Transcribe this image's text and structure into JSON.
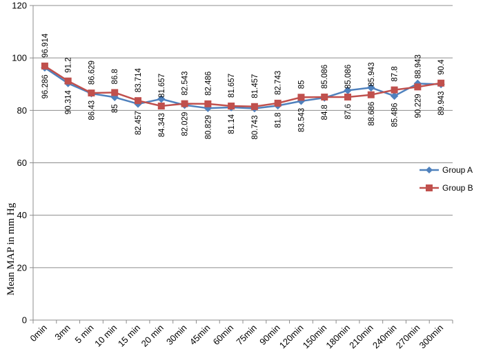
{
  "chart_data": {
    "type": "line",
    "title": "",
    "xlabel": "",
    "ylabel": "Mean MAP in mm Hg",
    "ylim": [
      0,
      120
    ],
    "yticks": [
      0,
      20,
      40,
      60,
      80,
      100,
      120
    ],
    "grid": "horizontal",
    "legend_position": "right",
    "categories": [
      "0min",
      "3mn",
      "5 min",
      "10 min",
      "15 min",
      "20 min",
      "30min",
      "45min",
      "60min",
      "75min",
      "90min",
      "120min",
      "150min",
      "180min",
      "210min",
      "240min",
      "270min",
      "300min"
    ],
    "series": [
      {
        "name": "Group A",
        "color": "#4F81BD",
        "marker": "diamond",
        "values": [
          96.286,
          90.314,
          86.43,
          85,
          82.457,
          84.343,
          82.029,
          80.829,
          81.14,
          80.743,
          81.8,
          83.543,
          84.8,
          87.6,
          88.686,
          85.486,
          90.229,
          89.943
        ],
        "labels": [
          "96.286",
          "90.314",
          "86.43",
          "85",
          "82.457",
          "84.343",
          "82.029",
          "80.829",
          "81.14",
          "80.743",
          "81.8",
          "83.543",
          "84.8",
          "87.6",
          "88.686",
          "85.486",
          "90.229",
          "89.943"
        ]
      },
      {
        "name": "Group B",
        "color": "#C0504D",
        "marker": "square",
        "values": [
          96.914,
          91.2,
          86.629,
          86.8,
          83.714,
          81.657,
          82.543,
          82.486,
          81.657,
          81.457,
          82.743,
          85,
          85.086,
          85.086,
          85.943,
          87.8,
          88.943,
          90.4
        ],
        "labels": [
          "96.914",
          "91.2",
          "86.629",
          "86.8",
          "83.714",
          "81.657",
          "82.543",
          "82.486",
          "81.657",
          "81.457",
          "82.743",
          "85",
          "85.086",
          "85.086",
          "85.943",
          "87.8",
          "88.943",
          "90.4"
        ]
      }
    ]
  }
}
